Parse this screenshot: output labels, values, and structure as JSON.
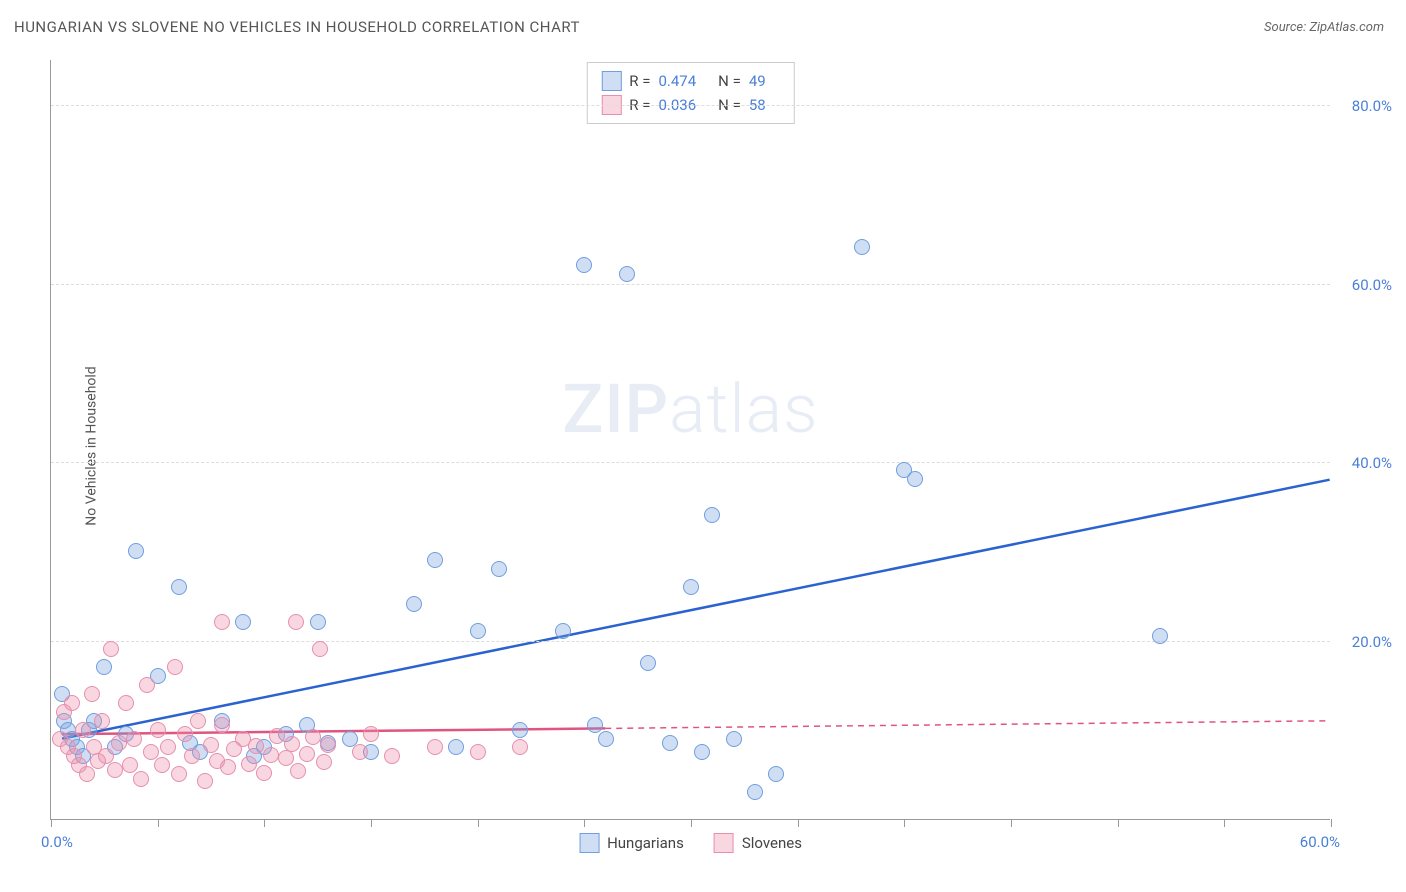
{
  "title": "HUNGARIAN VS SLOVENE NO VEHICLES IN HOUSEHOLD CORRELATION CHART",
  "source_prefix": "Source: ",
  "source_name": "ZipAtlas.com",
  "watermark_bold": "ZIP",
  "watermark_light": "atlas",
  "y_axis_title": "No Vehicles in Household",
  "chart": {
    "type": "scatter",
    "xlim": [
      0,
      60
    ],
    "ylim": [
      0,
      85
    ],
    "x_start_label": "0.0%",
    "x_end_label": "60.0%",
    "x_ticks": [
      0,
      5,
      10,
      15,
      20,
      25,
      30,
      35,
      40,
      45,
      50,
      55,
      60
    ],
    "y_gridlines": [
      {
        "value": 20,
        "label": "20.0%"
      },
      {
        "value": 40,
        "label": "40.0%"
      },
      {
        "value": 60,
        "label": "60.0%"
      },
      {
        "value": 80,
        "label": "80.0%"
      }
    ],
    "background_color": "#ffffff",
    "grid_color": "#dddddd",
    "axis_color": "#999999",
    "tick_label_color": "#4a7fd8",
    "marker_radius": 8,
    "marker_stroke_width": 1.5,
    "trend_line_width": 2.5,
    "series": [
      {
        "name": "Hungarians",
        "fill_color": "rgba(120,160,220,0.35)",
        "stroke_color": "#6f9fe0",
        "trend_color": "#2a62d0",
        "r": 0.474,
        "n": 49,
        "trend": {
          "x1": 0.5,
          "y1": 9,
          "x2": 60,
          "y2": 38,
          "solid_until_x": 60
        },
        "points": [
          [
            0.5,
            14
          ],
          [
            0.6,
            11
          ],
          [
            0.8,
            10
          ],
          [
            1.0,
            9
          ],
          [
            1.2,
            8
          ],
          [
            1.5,
            7
          ],
          [
            1.8,
            10
          ],
          [
            2.0,
            11
          ],
          [
            2.5,
            17
          ],
          [
            3,
            8
          ],
          [
            3.5,
            9.5
          ],
          [
            4,
            30
          ],
          [
            5,
            16
          ],
          [
            6,
            26
          ],
          [
            6.5,
            8.5
          ],
          [
            7,
            7.5
          ],
          [
            8,
            11
          ],
          [
            9,
            22
          ],
          [
            9.5,
            7
          ],
          [
            10,
            8
          ],
          [
            11,
            9.5
          ],
          [
            12,
            10.5
          ],
          [
            12.5,
            22
          ],
          [
            13,
            8.5
          ],
          [
            14,
            9
          ],
          [
            15,
            7.5
          ],
          [
            17,
            24
          ],
          [
            18,
            29
          ],
          [
            19,
            8
          ],
          [
            20,
            21
          ],
          [
            21,
            28
          ],
          [
            22,
            10
          ],
          [
            24,
            21
          ],
          [
            25,
            62
          ],
          [
            25.5,
            10.5
          ],
          [
            26,
            9
          ],
          [
            27,
            61
          ],
          [
            28,
            17.5
          ],
          [
            29,
            8.5
          ],
          [
            30,
            26
          ],
          [
            30.5,
            7.5
          ],
          [
            31,
            34
          ],
          [
            32,
            9
          ],
          [
            33,
            3
          ],
          [
            34,
            5
          ],
          [
            38,
            64
          ],
          [
            40,
            39
          ],
          [
            40.5,
            38
          ],
          [
            52,
            20.5
          ]
        ]
      },
      {
        "name": "Slovenes",
        "fill_color": "rgba(235,140,170,0.35)",
        "stroke_color": "#e68fb0",
        "trend_color": "#e0557f",
        "r": 0.036,
        "n": 58,
        "trend": {
          "x1": 0.5,
          "y1": 9.5,
          "x2": 60,
          "y2": 11,
          "solid_until_x": 26
        },
        "points": [
          [
            0.4,
            9
          ],
          [
            0.6,
            12
          ],
          [
            0.8,
            8
          ],
          [
            1.0,
            13
          ],
          [
            1.1,
            7
          ],
          [
            1.3,
            6
          ],
          [
            1.5,
            10
          ],
          [
            1.7,
            5
          ],
          [
            1.9,
            14
          ],
          [
            2.0,
            8
          ],
          [
            2.2,
            6.5
          ],
          [
            2.4,
            11
          ],
          [
            2.6,
            7
          ],
          [
            2.8,
            19
          ],
          [
            3.0,
            5.5
          ],
          [
            3.2,
            8.5
          ],
          [
            3.5,
            13
          ],
          [
            3.7,
            6
          ],
          [
            3.9,
            9
          ],
          [
            4.2,
            4.5
          ],
          [
            4.5,
            15
          ],
          [
            4.7,
            7.5
          ],
          [
            5.0,
            10
          ],
          [
            5.2,
            6
          ],
          [
            5.5,
            8
          ],
          [
            5.8,
            17
          ],
          [
            6.0,
            5
          ],
          [
            6.3,
            9.5
          ],
          [
            6.6,
            7
          ],
          [
            6.9,
            11
          ],
          [
            7.2,
            4.2
          ],
          [
            7.5,
            8.3
          ],
          [
            7.8,
            6.5
          ],
          [
            8.0,
            10.5
          ],
          [
            8.0,
            22
          ],
          [
            8.3,
            5.8
          ],
          [
            8.6,
            7.8
          ],
          [
            9.0,
            9
          ],
          [
            9.3,
            6.2
          ],
          [
            9.6,
            8.2
          ],
          [
            10.0,
            5.2
          ],
          [
            10.3,
            7.2
          ],
          [
            10.6,
            9.3
          ],
          [
            11.0,
            6.8
          ],
          [
            11.3,
            8.4
          ],
          [
            11.5,
            22
          ],
          [
            11.6,
            5.4
          ],
          [
            12.0,
            7.3
          ],
          [
            12.3,
            9.2
          ],
          [
            12.6,
            19
          ],
          [
            12.8,
            6.4
          ],
          [
            13.0,
            8.3
          ],
          [
            14.5,
            7.5
          ],
          [
            15.0,
            9.5
          ],
          [
            16.0,
            7
          ],
          [
            18.0,
            8
          ],
          [
            20.0,
            7.5
          ],
          [
            22.0,
            8
          ]
        ]
      }
    ]
  },
  "legend_top": {
    "r_label": "R =",
    "n_label": "N ="
  },
  "legend_bottom": [
    "Hungarians",
    "Slovenes"
  ]
}
